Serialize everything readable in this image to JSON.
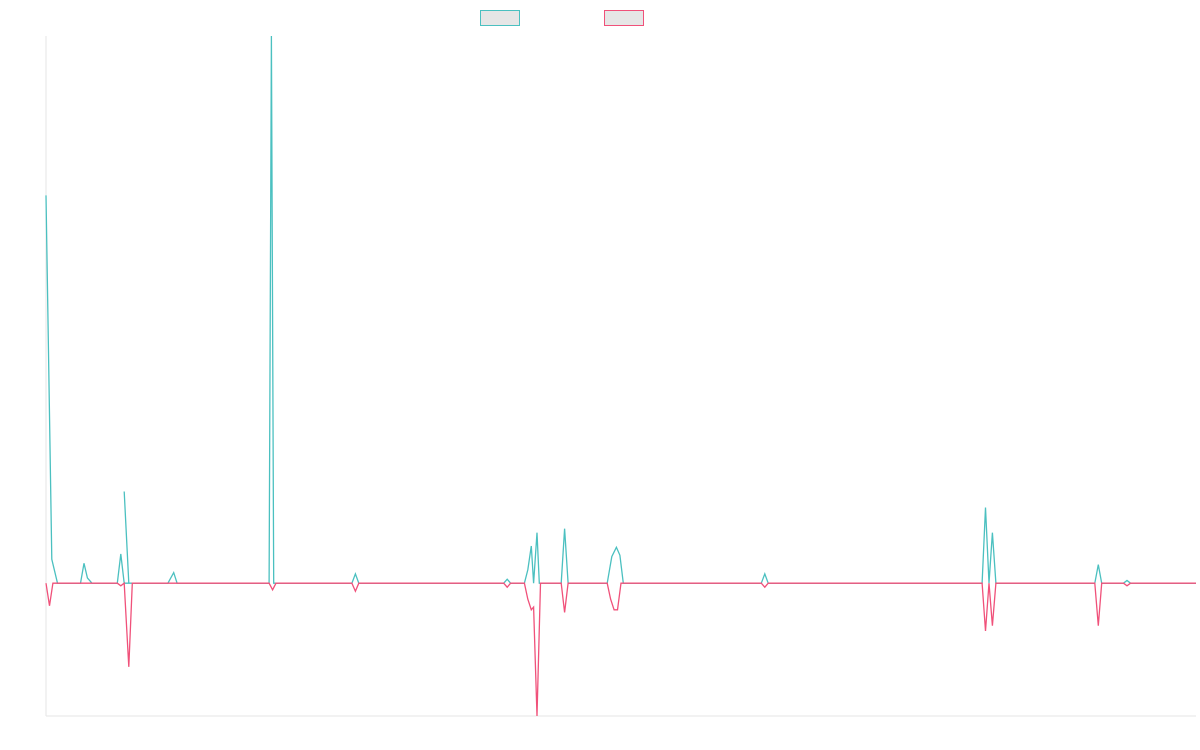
{
  "chart_data": {
    "type": "line",
    "title": "",
    "xlabel": "",
    "ylabel": "",
    "grid": false,
    "legend_position": "top-center",
    "ylim": [
      -1.0,
      4.12
    ],
    "series": [
      {
        "color": "#4bc0c0",
        "points": [
          [
            0.0,
            2.92
          ],
          [
            0.005,
            0.18
          ],
          [
            0.01,
            0.0
          ],
          [
            0.03,
            0.0
          ],
          [
            0.033,
            0.15
          ],
          [
            0.036,
            0.04
          ],
          [
            0.04,
            0.0
          ],
          [
            0.062,
            0.0
          ],
          [
            0.065,
            0.22
          ],
          [
            0.068,
            0.0
          ],
          [
            0.072,
            0.0
          ],
          [
            0.068,
            0.69
          ],
          [
            0.072,
            0.0
          ],
          [
            0.106,
            0.0
          ],
          [
            0.111,
            0.08
          ],
          [
            0.114,
            0.0
          ],
          [
            0.128,
            0.0
          ],
          [
            0.194,
            0.0
          ],
          [
            0.196,
            4.12
          ],
          [
            0.198,
            0.0
          ],
          [
            0.266,
            0.0
          ],
          [
            0.269,
            0.07
          ],
          [
            0.272,
            0.0
          ],
          [
            0.398,
            0.0
          ],
          [
            0.401,
            0.03
          ],
          [
            0.404,
            0.0
          ],
          [
            0.416,
            0.0
          ],
          [
            0.419,
            0.1
          ],
          [
            0.422,
            0.28
          ],
          [
            0.424,
            0.0
          ],
          [
            0.427,
            0.38
          ],
          [
            0.429,
            0.0
          ],
          [
            0.448,
            0.0
          ],
          [
            0.451,
            0.41
          ],
          [
            0.454,
            0.0
          ],
          [
            0.488,
            0.0
          ],
          [
            0.492,
            0.2
          ],
          [
            0.496,
            0.27
          ],
          [
            0.499,
            0.21
          ],
          [
            0.502,
            0.0
          ],
          [
            0.622,
            0.0
          ],
          [
            0.625,
            0.07
          ],
          [
            0.628,
            0.0
          ],
          [
            0.814,
            0.0
          ],
          [
            0.817,
            0.57
          ],
          [
            0.82,
            0.0
          ],
          [
            0.823,
            0.38
          ],
          [
            0.826,
            0.0
          ],
          [
            0.912,
            0.0
          ],
          [
            0.915,
            0.14
          ],
          [
            0.918,
            0.0
          ],
          [
            0.937,
            0.0
          ],
          [
            0.94,
            0.02
          ],
          [
            0.943,
            0.0
          ],
          [
            1.0,
            0.0
          ]
        ]
      },
      {
        "color": "#f0517a",
        "points": [
          [
            0.0,
            0.0
          ],
          [
            0.003,
            -0.17
          ],
          [
            0.006,
            0.0
          ],
          [
            0.062,
            0.0
          ],
          [
            0.065,
            -0.02
          ],
          [
            0.068,
            0.0
          ],
          [
            0.072,
            -0.63
          ],
          [
            0.075,
            0.0
          ],
          [
            0.194,
            0.0
          ],
          [
            0.197,
            -0.05
          ],
          [
            0.2,
            0.0
          ],
          [
            0.266,
            0.0
          ],
          [
            0.269,
            -0.06
          ],
          [
            0.272,
            0.0
          ],
          [
            0.398,
            0.0
          ],
          [
            0.401,
            -0.03
          ],
          [
            0.404,
            0.0
          ],
          [
            0.416,
            0.0
          ],
          [
            0.419,
            -0.12
          ],
          [
            0.422,
            -0.2
          ],
          [
            0.424,
            -0.18
          ],
          [
            0.427,
            -1.0
          ],
          [
            0.43,
            0.0
          ],
          [
            0.448,
            0.0
          ],
          [
            0.451,
            -0.22
          ],
          [
            0.454,
            0.0
          ],
          [
            0.488,
            0.0
          ],
          [
            0.491,
            -0.12
          ],
          [
            0.494,
            -0.2
          ],
          [
            0.497,
            -0.2
          ],
          [
            0.5,
            0.0
          ],
          [
            0.622,
            0.0
          ],
          [
            0.625,
            -0.03
          ],
          [
            0.628,
            0.0
          ],
          [
            0.814,
            0.0
          ],
          [
            0.817,
            -0.36
          ],
          [
            0.82,
            0.0
          ],
          [
            0.823,
            -0.32
          ],
          [
            0.826,
            0.0
          ],
          [
            0.912,
            0.0
          ],
          [
            0.915,
            -0.32
          ],
          [
            0.918,
            0.0
          ],
          [
            0.937,
            0.0
          ],
          [
            0.94,
            -0.02
          ],
          [
            0.943,
            0.0
          ],
          [
            1.0,
            0.0
          ]
        ]
      }
    ],
    "axis_color": "#e6e6e6"
  }
}
